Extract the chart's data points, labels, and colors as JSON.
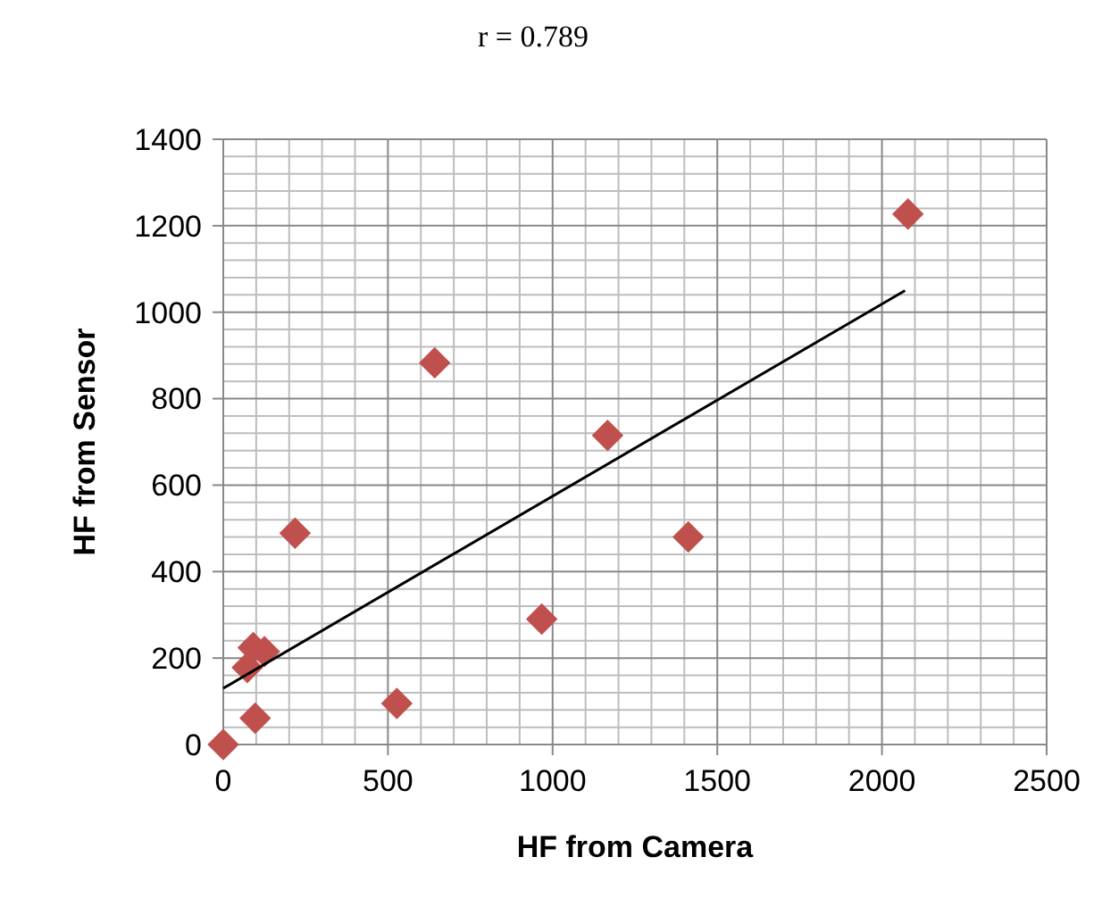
{
  "chart_data": {
    "type": "scatter",
    "title": "r = 0.789",
    "xlabel": "HF from Camera",
    "ylabel": "HF from Sensor",
    "xlim": [
      0,
      2500
    ],
    "xticks": [
      0,
      500,
      1000,
      1500,
      2000,
      2500
    ],
    "ylim": [
      0,
      1400
    ],
    "yticks": [
      0,
      200,
      400,
      600,
      800,
      1000,
      1200,
      1400
    ],
    "grid": true,
    "marker": "diamond",
    "series": [
      {
        "color": "#c0504d",
        "x": [
          0,
          97,
          73,
          91,
          125,
          218,
          527,
          642,
          967,
          1167,
          1412,
          2079
        ],
        "values": [
          0,
          61,
          178,
          224,
          215,
          489,
          95,
          883,
          290,
          715,
          480,
          1227
        ]
      },
      {
        "type": "line",
        "color": "#000000",
        "line_style": "solid",
        "marker": "none",
        "x": [
          0,
          2070
        ],
        "values": [
          130,
          1050
        ]
      }
    ]
  }
}
